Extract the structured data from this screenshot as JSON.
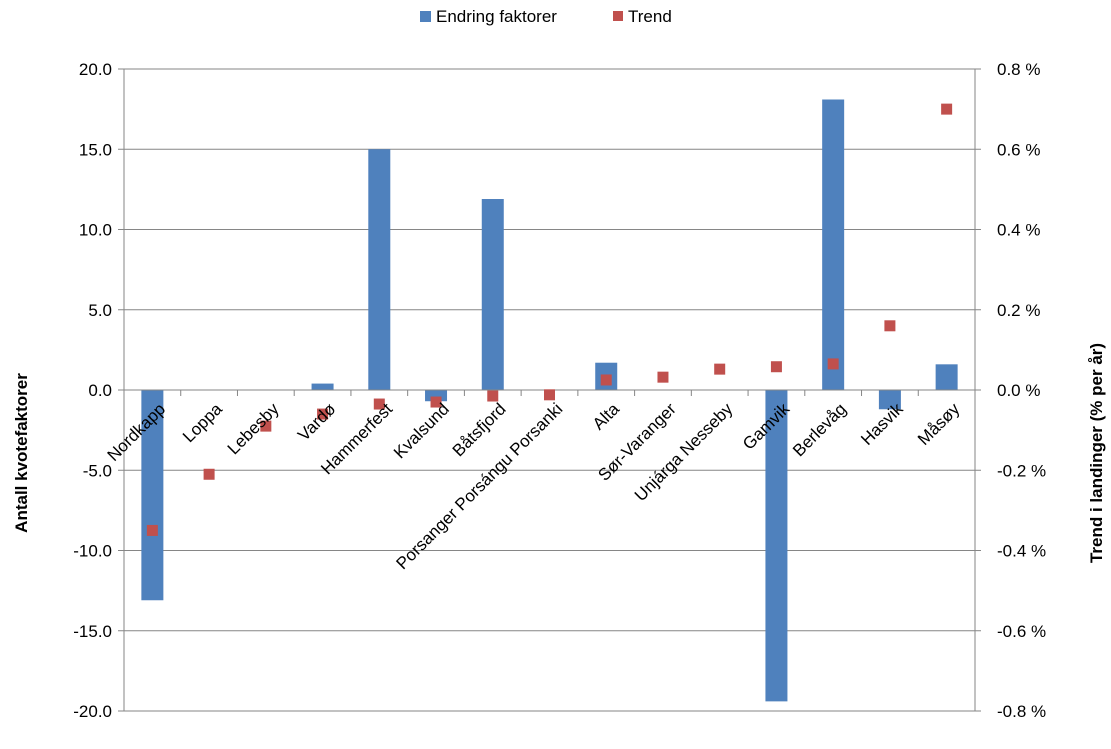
{
  "chart_data": {
    "type": "bar",
    "title": "",
    "ylabel_left": "Antall kvotefaktorer",
    "ylabel_right": "Trend i landinger  (% per år)",
    "categories": [
      "Nordkapp",
      "Loppa",
      "Lebesby",
      "Vardø",
      "Hammerfest",
      "Kvalsund",
      "Båtsfjord",
      "Porsanger Porsángu Porsanki",
      "Alta",
      "Sør-Varanger",
      "Unjárga Nesseby",
      "Gamvik",
      "Berlevåg",
      "Hasvik",
      "Måsøy"
    ],
    "series": [
      {
        "name": "Endring faktorer",
        "axis": "left",
        "kind": "bar",
        "color": "#4F81BD",
        "values": [
          -13.1,
          0.0,
          0.0,
          0.4,
          15.0,
          -0.7,
          11.9,
          0.0,
          1.7,
          0.0,
          0.0,
          -19.4,
          18.1,
          -1.2,
          1.6
        ]
      },
      {
        "name": "Trend",
        "axis": "right",
        "kind": "marker",
        "color": "#C0504D",
        "values": [
          -0.35,
          -0.21,
          -0.09,
          -0.06,
          -0.035,
          -0.03,
          -0.015,
          -0.012,
          0.025,
          0.032,
          0.052,
          0.058,
          0.065,
          0.16,
          0.7
        ]
      }
    ],
    "ylim_left": [
      -20,
      20
    ],
    "ylim_right": [
      -0.8,
      0.8
    ],
    "yticks_left": [
      "20.0",
      "15.0",
      "10.0",
      "5.0",
      "0.0",
      "-5.0",
      "-10.0",
      "-15.0",
      "-20.0"
    ],
    "yticks_right": [
      "0.8 %",
      "0.6 %",
      "0.4 %",
      "0.2 %",
      "0.0 %",
      "-0.2 %",
      "-0.4 %",
      "-0.6 %",
      "-0.8 %"
    ],
    "grid": true,
    "legend": "top-center"
  }
}
